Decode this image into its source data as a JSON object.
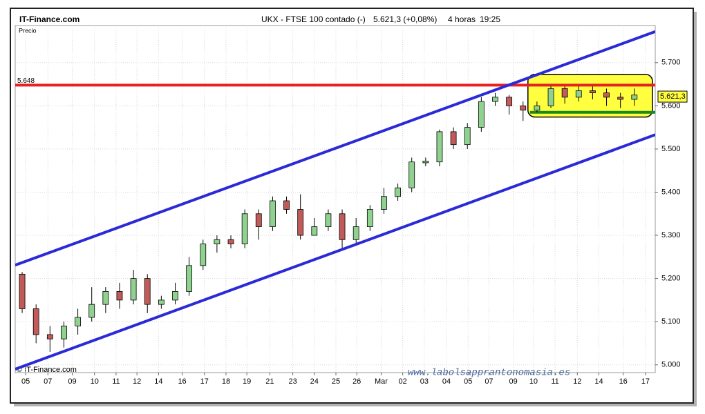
{
  "chart_data": {
    "type": "candlestick",
    "site": "IT-Finance.com",
    "title": "UKX - FTSE 100 contado (-)",
    "quote": "5.621,3 (+0,08%)",
    "period": "4 horas",
    "time": "19:25",
    "y_label": "Precio",
    "copyright": "© IT-Finance.com",
    "watermark": "www.labolsapprantonomasia.es",
    "xlim": [
      0,
      46
    ],
    "ylim": [
      4982,
      5786
    ],
    "yticks": [
      {
        "value": 5000,
        "label": "5.000"
      },
      {
        "value": 5100,
        "label": "5.100"
      },
      {
        "value": 5200,
        "label": "5.200"
      },
      {
        "value": 5300,
        "label": "5.300"
      },
      {
        "value": 5400,
        "label": "5.400"
      },
      {
        "value": 5500,
        "label": "5.500"
      },
      {
        "value": 5600,
        "label": "5.600"
      },
      {
        "value": 5700,
        "label": "5.700"
      }
    ],
    "xticks": [
      {
        "value": 0.75,
        "label": "05"
      },
      {
        "value": 2.35,
        "label": "07"
      },
      {
        "value": 4.1,
        "label": "09"
      },
      {
        "value": 5.7,
        "label": "10"
      },
      {
        "value": 7.25,
        "label": "11"
      },
      {
        "value": 8.75,
        "label": "12"
      },
      {
        "value": 10.3,
        "label": "14"
      },
      {
        "value": 12,
        "label": "16"
      },
      {
        "value": 13.6,
        "label": "17"
      },
      {
        "value": 15.15,
        "label": "18"
      },
      {
        "value": 16.65,
        "label": "19"
      },
      {
        "value": 18.3,
        "label": "21"
      },
      {
        "value": 19.95,
        "label": "23"
      },
      {
        "value": 21.5,
        "label": "24"
      },
      {
        "value": 23.05,
        "label": "25"
      },
      {
        "value": 24.55,
        "label": "26"
      },
      {
        "value": 26.3,
        "label": "Mar"
      },
      {
        "value": 27.85,
        "label": "02"
      },
      {
        "value": 29.4,
        "label": "03"
      },
      {
        "value": 31,
        "label": "04"
      },
      {
        "value": 32.55,
        "label": "05"
      },
      {
        "value": 34.05,
        "label": "07"
      },
      {
        "value": 35.8,
        "label": "09"
      },
      {
        "value": 37.25,
        "label": "10"
      },
      {
        "value": 38.8,
        "label": "11"
      },
      {
        "value": 40.4,
        "label": "12"
      },
      {
        "value": 41.95,
        "label": "14"
      },
      {
        "value": 43.7,
        "label": "16"
      },
      {
        "value": 45.3,
        "label": "17"
      }
    ],
    "grid": true,
    "up_color": "#8fd18f",
    "down_color": "#c25a5a",
    "candles": [
      [
        5210,
        5215,
        5120,
        5130
      ],
      [
        5130,
        5140,
        5050,
        5070
      ],
      [
        5070,
        5090,
        5030,
        5060
      ],
      [
        5060,
        5100,
        5040,
        5090
      ],
      [
        5090,
        5130,
        5070,
        5110
      ],
      [
        5110,
        5180,
        5100,
        5140
      ],
      [
        5140,
        5180,
        5120,
        5170
      ],
      [
        5170,
        5190,
        5130,
        5150
      ],
      [
        5150,
        5220,
        5140,
        5200
      ],
      [
        5200,
        5210,
        5120,
        5140
      ],
      [
        5140,
        5160,
        5130,
        5150
      ],
      [
        5150,
        5190,
        5140,
        5170
      ],
      [
        5170,
        5250,
        5160,
        5230
      ],
      [
        5230,
        5290,
        5220,
        5280
      ],
      [
        5280,
        5300,
        5260,
        5290
      ],
      [
        5290,
        5300,
        5270,
        5280
      ],
      [
        5280,
        5360,
        5270,
        5350
      ],
      [
        5350,
        5360,
        5290,
        5320
      ],
      [
        5320,
        5390,
        5310,
        5380
      ],
      [
        5380,
        5390,
        5350,
        5360
      ],
      [
        5360,
        5395,
        5290,
        5300
      ],
      [
        5300,
        5340,
        5300,
        5320
      ],
      [
        5320,
        5360,
        5310,
        5350
      ],
      [
        5350,
        5360,
        5270,
        5290
      ],
      [
        5290,
        5340,
        5280,
        5320
      ],
      [
        5320,
        5370,
        5310,
        5360
      ],
      [
        5360,
        5410,
        5350,
        5390
      ],
      [
        5390,
        5420,
        5380,
        5410
      ],
      [
        5410,
        5480,
        5400,
        5470
      ],
      [
        5468,
        5480,
        5460,
        5472
      ],
      [
        5470,
        5545,
        5460,
        5540
      ],
      [
        5540,
        5550,
        5500,
        5510
      ],
      [
        5510,
        5560,
        5500,
        5550
      ],
      [
        5550,
        5620,
        5540,
        5610
      ],
      [
        5610,
        5630,
        5600,
        5620
      ],
      [
        5620,
        5625,
        5580,
        5600
      ],
      [
        5600,
        5610,
        5565,
        5590
      ],
      [
        5590,
        5610,
        5585,
        5600
      ],
      [
        5600,
        5645,
        5595,
        5640
      ],
      [
        5640,
        5645,
        5605,
        5620
      ],
      [
        5620,
        5645,
        5610,
        5635
      ],
      [
        5635,
        5645,
        5615,
        5630
      ],
      [
        5630,
        5640,
        5600,
        5620
      ],
      [
        5620,
        5630,
        5595,
        5615
      ],
      [
        5615,
        5640,
        5600,
        5625
      ]
    ],
    "trendlines": [
      {
        "color": "#2a2ad8",
        "x": [
          0,
          46
        ],
        "y": [
          5231,
          5772
        ]
      },
      {
        "color": "#2a2ad8",
        "x": [
          0,
          46
        ],
        "y": [
          4990,
          5533
        ]
      }
    ],
    "hlines": [
      {
        "value": 5648,
        "label": "5.648",
        "color": "#e82020",
        "x": [
          0,
          46
        ]
      },
      {
        "value": 5585,
        "color": "#1a8a1a",
        "x": [
          37,
          46
        ]
      }
    ],
    "highlight_box": {
      "x": [
        36.85,
        46
      ],
      "y": [
        5574,
        5673
      ],
      "color": "#ffff40"
    },
    "last_price": {
      "value": 5621.3,
      "label": "5.621,3"
    }
  }
}
